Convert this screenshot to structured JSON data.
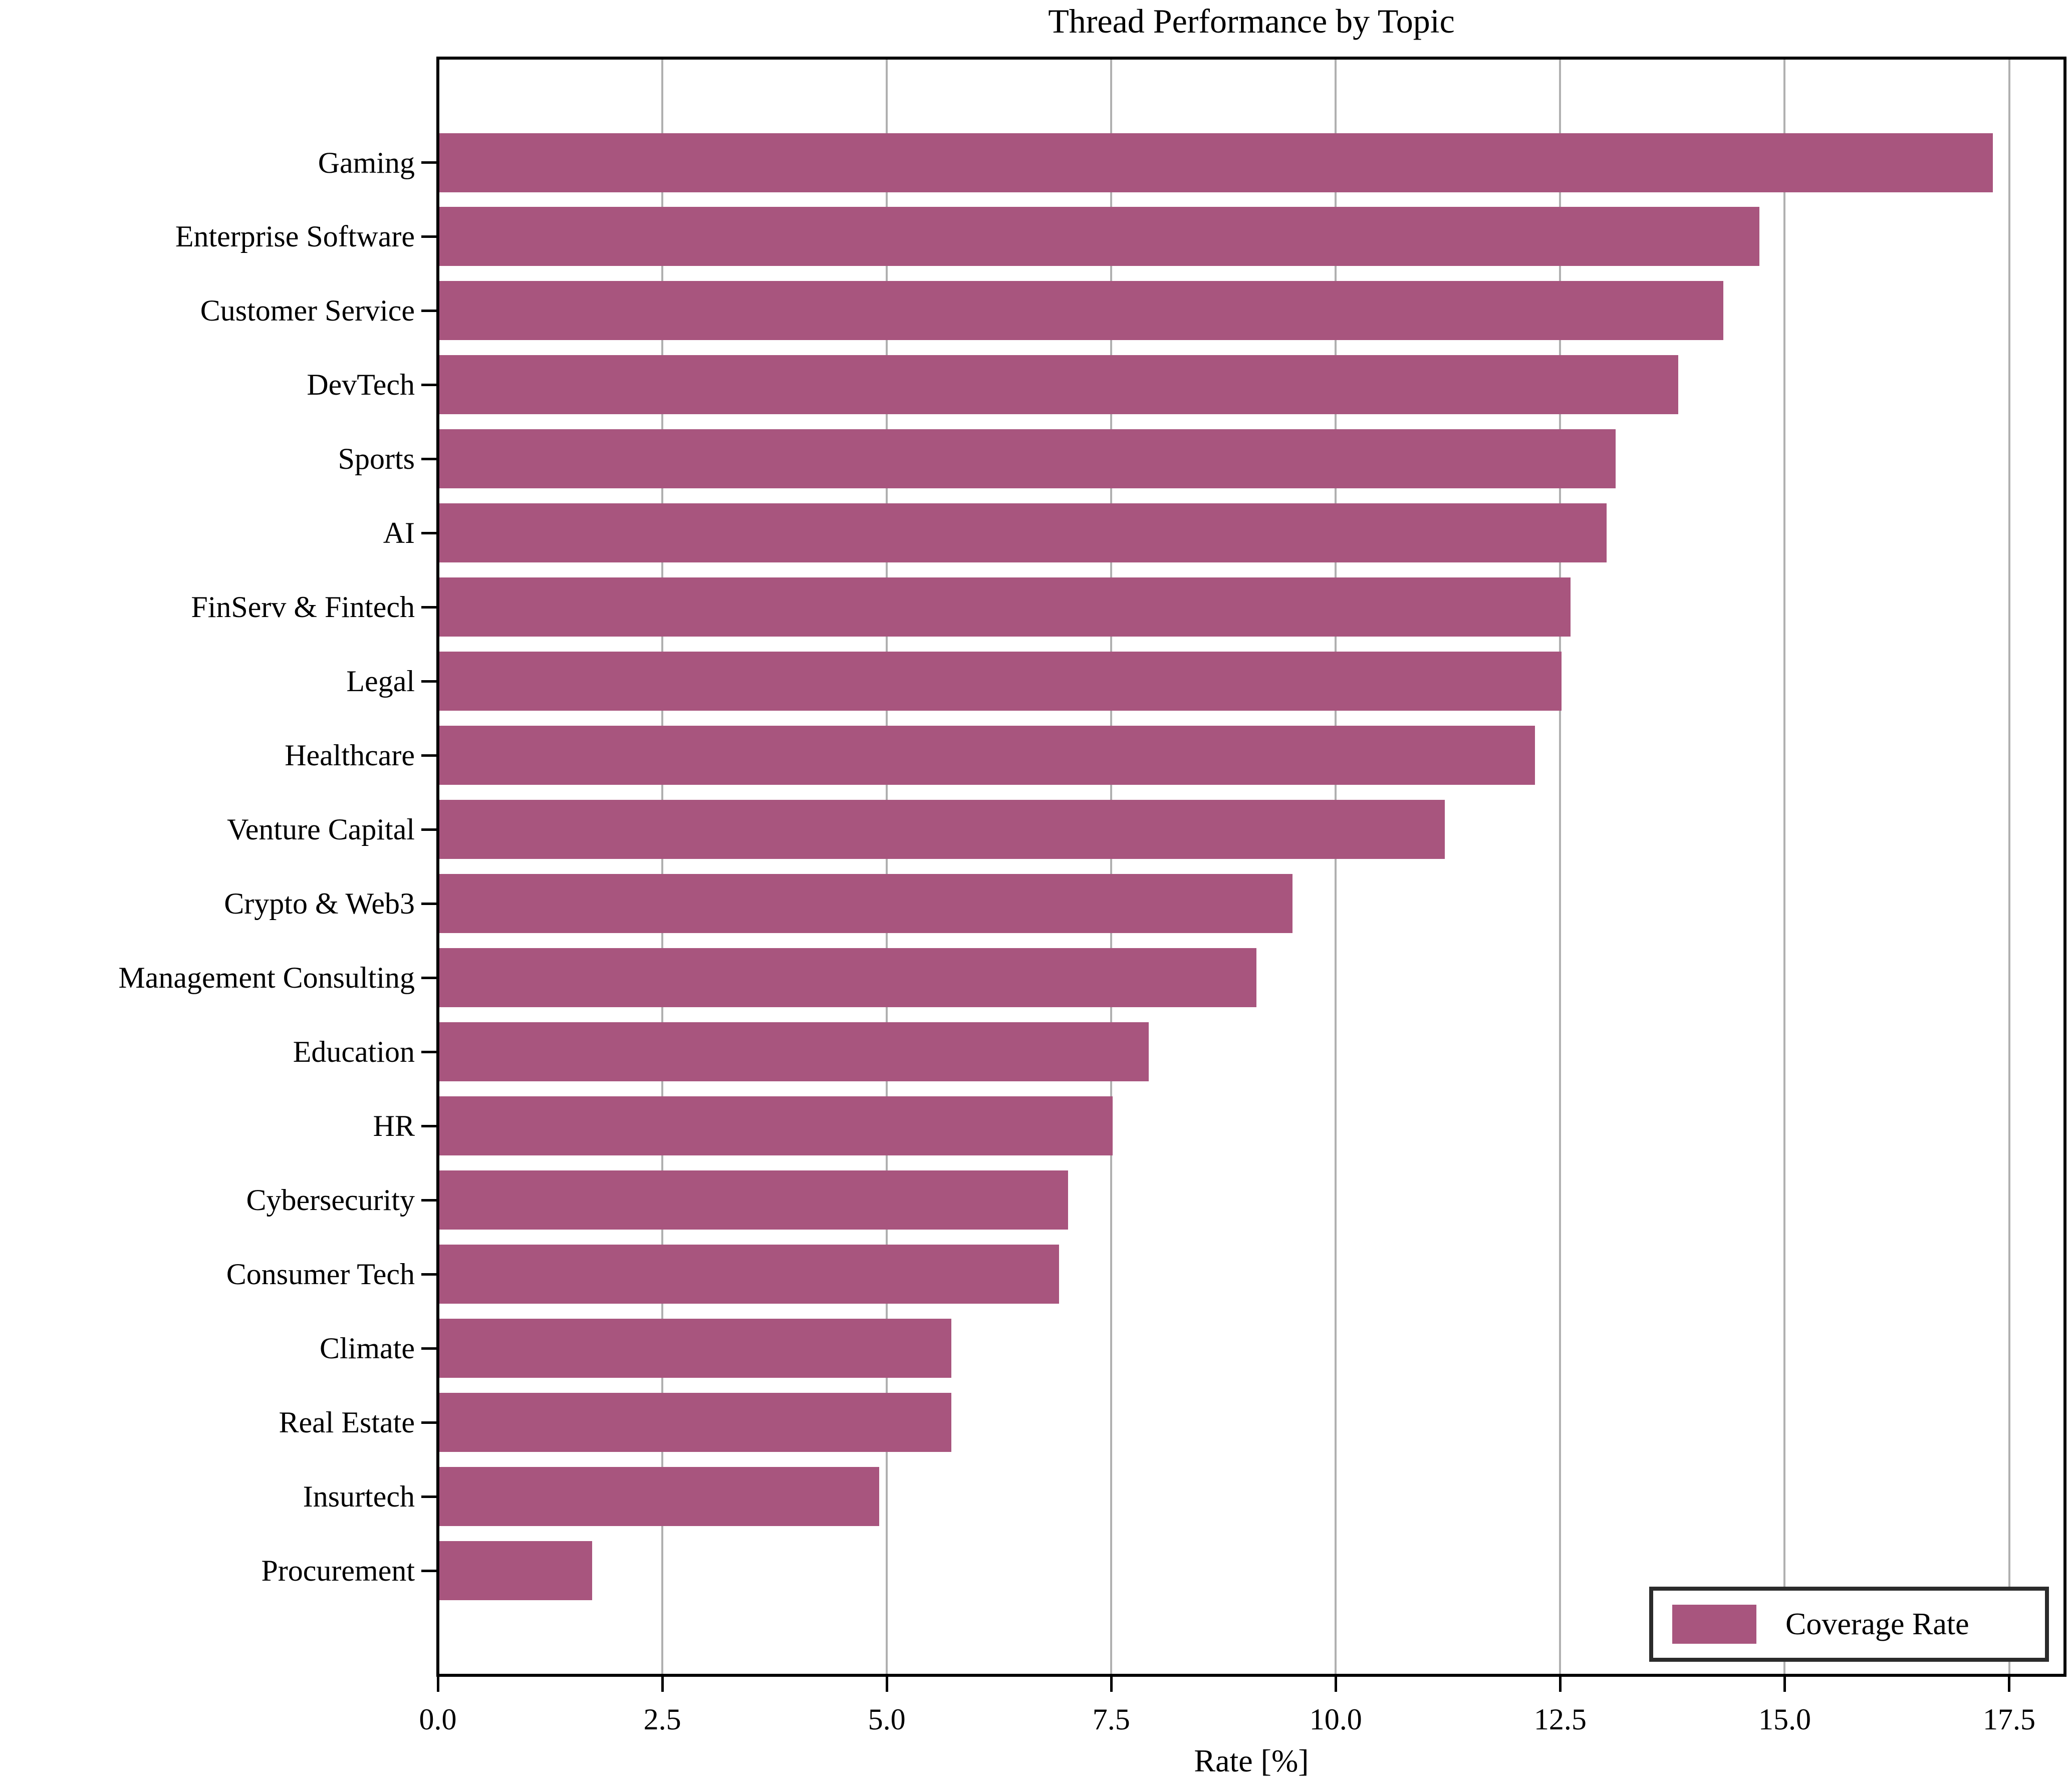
{
  "chart_data": {
    "type": "bar",
    "orientation": "horizontal",
    "title": "Thread Performance by Topic",
    "xlabel": "Rate [%]",
    "legend": {
      "label": "Coverage Rate",
      "position": "lower right"
    },
    "categories": [
      "Gaming",
      "Enterprise Software",
      "Customer Service",
      "DevTech",
      "Sports",
      "AI",
      "FinServ & Fintech",
      "Legal",
      "Healthcare",
      "Venture Capital",
      "Crypto & Web3",
      "Management Consulting",
      "Education",
      "HR",
      "Cybersecurity",
      "Consumer Tech",
      "Climate",
      "Real Estate",
      "Insurtech",
      "Procurement"
    ],
    "values": [
      17.3,
      14.7,
      14.3,
      13.8,
      13.1,
      13.0,
      12.6,
      12.5,
      12.2,
      11.2,
      9.5,
      9.1,
      7.9,
      7.5,
      7.0,
      6.9,
      5.7,
      5.7,
      4.9,
      1.7
    ],
    "xlim": [
      0.0,
      18.2
    ],
    "xticks": [
      "0.0",
      "2.5",
      "5.0",
      "7.5",
      "10.0",
      "12.5",
      "15.0",
      "17.5"
    ],
    "grid": true,
    "bar_color": "#a8557e",
    "grid_color": "#b0b0b0",
    "spine_color": "#000000"
  }
}
